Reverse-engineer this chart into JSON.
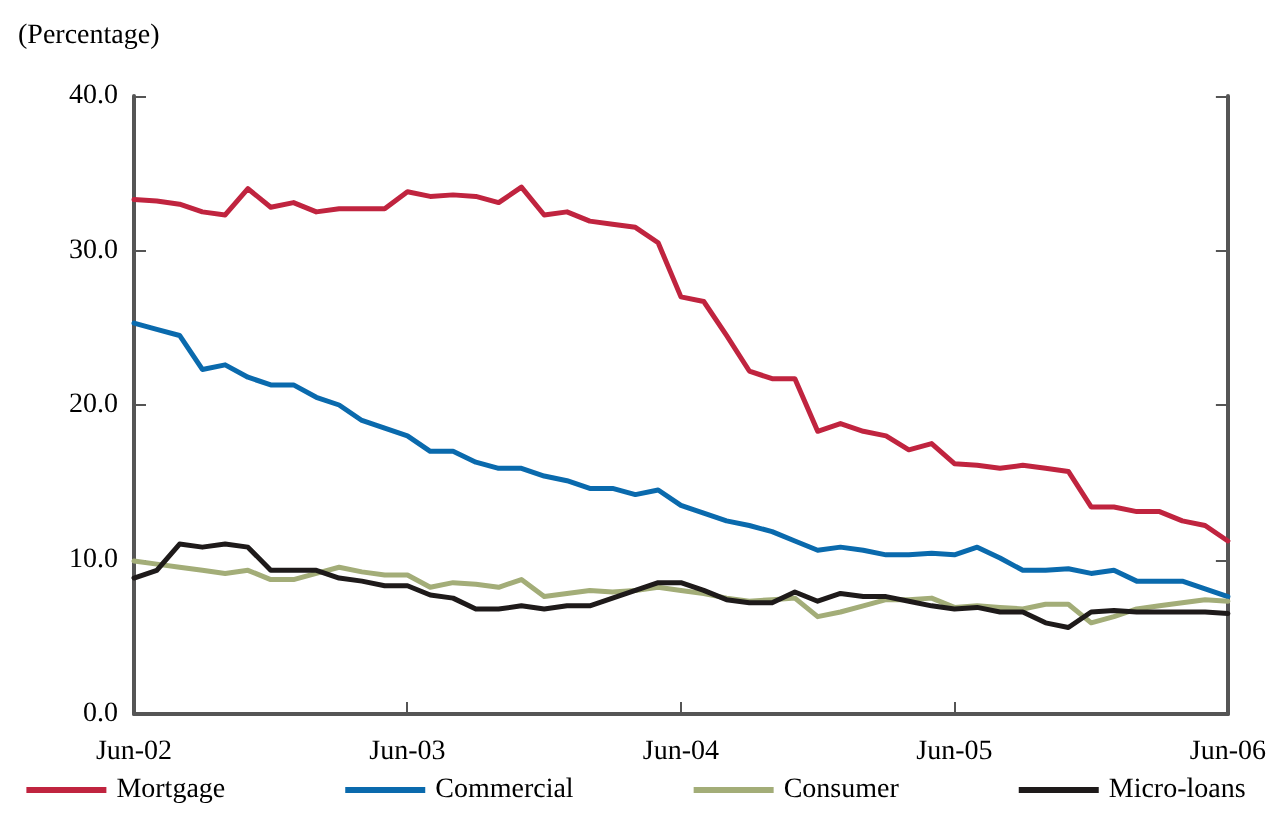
{
  "chart_data": {
    "type": "line",
    "ylabel": "(Percentage)",
    "categories": [
      "Jun-02",
      null,
      null,
      null,
      null,
      null,
      null,
      null,
      null,
      null,
      null,
      null,
      "Jun-03",
      null,
      null,
      null,
      null,
      null,
      null,
      null,
      null,
      null,
      null,
      null,
      "Jun-04",
      null,
      null,
      null,
      null,
      null,
      null,
      null,
      null,
      null,
      null,
      null,
      "Jun-05",
      null,
      null,
      null,
      null,
      null,
      null,
      null,
      null,
      null,
      null,
      null,
      "Jun-06"
    ],
    "series": [
      {
        "name": "Mortgage",
        "color": "#c0243f",
        "values": [
          33.3,
          33.2,
          33.0,
          32.5,
          32.3,
          34.0,
          32.8,
          33.1,
          32.5,
          32.7,
          32.7,
          32.7,
          33.8,
          33.5,
          33.6,
          33.5,
          33.1,
          34.1,
          32.3,
          32.5,
          31.9,
          31.7,
          31.5,
          30.5,
          27.0,
          26.7,
          24.5,
          22.2,
          21.7,
          21.7,
          18.3,
          18.8,
          18.3,
          18.0,
          17.1,
          17.5,
          16.2,
          16.1,
          15.9,
          16.1,
          15.9,
          15.7,
          13.4,
          13.4,
          13.1,
          13.1,
          12.5,
          12.2,
          11.2
        ]
      },
      {
        "name": "Commercial",
        "color": "#0a6aad",
        "values": [
          25.3,
          24.9,
          24.5,
          22.3,
          22.6,
          21.8,
          21.3,
          21.3,
          20.5,
          20.0,
          19.0,
          18.5,
          18.0,
          17.0,
          17.0,
          16.3,
          15.9,
          15.9,
          15.4,
          15.1,
          14.6,
          14.6,
          14.2,
          14.5,
          13.5,
          13.0,
          12.5,
          12.2,
          11.8,
          11.2,
          10.6,
          10.8,
          10.6,
          10.3,
          10.3,
          10.4,
          10.3,
          10.8,
          10.1,
          9.3,
          9.3,
          9.4,
          9.1,
          9.3,
          8.6,
          8.6,
          8.6,
          8.1,
          7.6
        ]
      },
      {
        "name": "Consumer",
        "color": "#a3ad78",
        "values": [
          9.9,
          9.7,
          9.5,
          9.3,
          9.1,
          9.3,
          8.7,
          8.7,
          9.1,
          9.5,
          9.2,
          9.0,
          9.0,
          8.2,
          8.5,
          8.4,
          8.2,
          8.7,
          7.6,
          7.8,
          8.0,
          7.9,
          8.0,
          8.2,
          8.0,
          7.8,
          7.5,
          7.3,
          7.4,
          7.5,
          6.3,
          6.6,
          7.0,
          7.4,
          7.4,
          7.5,
          6.9,
          7.0,
          6.9,
          6.8,
          7.1,
          7.1,
          5.9,
          6.3,
          6.8,
          7.0,
          7.2,
          7.4,
          7.3
        ]
      },
      {
        "name": "Micro-loans",
        "color": "#1e1a1a",
        "values": [
          8.8,
          9.3,
          11.0,
          10.8,
          11.0,
          10.8,
          9.3,
          9.3,
          9.3,
          8.8,
          8.6,
          8.3,
          8.3,
          7.7,
          7.5,
          6.8,
          6.8,
          7.0,
          6.8,
          7.0,
          7.0,
          7.5,
          8.0,
          8.5,
          8.5,
          8.0,
          7.4,
          7.2,
          7.2,
          7.9,
          7.3,
          7.8,
          7.6,
          7.6,
          7.3,
          7.0,
          6.8,
          6.9,
          6.6,
          6.6,
          5.9,
          5.6,
          6.6,
          6.7,
          6.6,
          6.6,
          6.6,
          6.6,
          6.5
        ]
      }
    ],
    "ylim": [
      0,
      40
    ],
    "yticks": [
      {
        "value": 0,
        "label": "0.0"
      },
      {
        "value": 10,
        "label": "10.0"
      },
      {
        "value": 20,
        "label": "20.0"
      },
      {
        "value": 30,
        "label": "30.0"
      },
      {
        "value": 40,
        "label": "40.0"
      }
    ],
    "grid": false,
    "legend": "bottom",
    "marker": "none",
    "line_style": "solid"
  }
}
